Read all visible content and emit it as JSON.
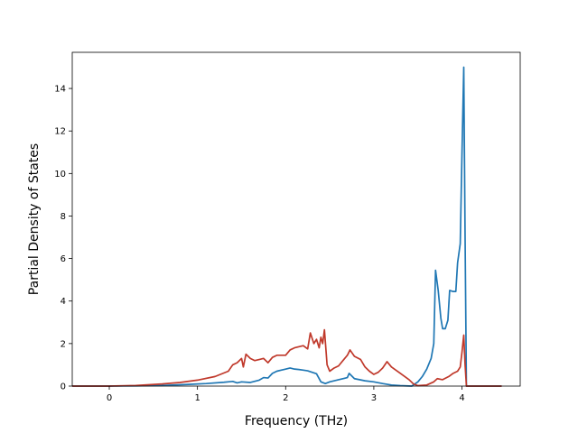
{
  "chart_data": {
    "type": "line",
    "title": "",
    "xlabel": "Frequency (THz)",
    "ylabel": "Partial Density of States",
    "xlim": [
      -0.42,
      4.66
    ],
    "ylim": [
      0,
      15.7
    ],
    "xticks": [
      0,
      1,
      2,
      3,
      4
    ],
    "yticks": [
      0,
      2,
      4,
      6,
      8,
      10,
      12,
      14
    ],
    "grid": false,
    "legend": "none",
    "series": [
      {
        "color": "#1f77b4",
        "points": [
          [
            -0.42,
            0
          ],
          [
            0.0,
            0
          ],
          [
            0.3,
            0.01
          ],
          [
            0.6,
            0.03
          ],
          [
            0.9,
            0.08
          ],
          [
            1.1,
            0.12
          ],
          [
            1.3,
            0.18
          ],
          [
            1.4,
            0.22
          ],
          [
            1.45,
            0.15
          ],
          [
            1.5,
            0.2
          ],
          [
            1.6,
            0.17
          ],
          [
            1.7,
            0.28
          ],
          [
            1.75,
            0.4
          ],
          [
            1.8,
            0.38
          ],
          [
            1.85,
            0.6
          ],
          [
            1.9,
            0.7
          ],
          [
            1.95,
            0.75
          ],
          [
            2.0,
            0.8
          ],
          [
            2.05,
            0.85
          ],
          [
            2.1,
            0.8
          ],
          [
            2.15,
            0.78
          ],
          [
            2.2,
            0.75
          ],
          [
            2.25,
            0.72
          ],
          [
            2.3,
            0.65
          ],
          [
            2.35,
            0.58
          ],
          [
            2.4,
            0.2
          ],
          [
            2.45,
            0.12
          ],
          [
            2.5,
            0.2
          ],
          [
            2.6,
            0.3
          ],
          [
            2.7,
            0.4
          ],
          [
            2.72,
            0.6
          ],
          [
            2.78,
            0.35
          ],
          [
            2.9,
            0.25
          ],
          [
            3.0,
            0.2
          ],
          [
            3.1,
            0.12
          ],
          [
            3.2,
            0.05
          ],
          [
            3.3,
            0.02
          ],
          [
            3.43,
            0.0
          ],
          [
            3.5,
            0.2
          ],
          [
            3.55,
            0.45
          ],
          [
            3.6,
            0.8
          ],
          [
            3.65,
            1.3
          ],
          [
            3.68,
            2.0
          ],
          [
            3.7,
            5.45
          ],
          [
            3.73,
            4.5
          ],
          [
            3.76,
            3.2
          ],
          [
            3.78,
            2.7
          ],
          [
            3.81,
            2.7
          ],
          [
            3.84,
            3.1
          ],
          [
            3.86,
            4.5
          ],
          [
            3.9,
            4.45
          ],
          [
            3.93,
            4.45
          ],
          [
            3.95,
            5.8
          ],
          [
            3.98,
            6.7
          ],
          [
            4.0,
            11.0
          ],
          [
            4.02,
            15.0
          ],
          [
            4.035,
            7.0
          ],
          [
            4.05,
            0.0
          ],
          [
            4.45,
            0.0
          ]
        ]
      },
      {
        "color": "#c0392b",
        "points": [
          [
            -0.42,
            0
          ],
          [
            0.0,
            0
          ],
          [
            0.3,
            0.03
          ],
          [
            0.6,
            0.1
          ],
          [
            0.8,
            0.17
          ],
          [
            1.0,
            0.28
          ],
          [
            1.2,
            0.45
          ],
          [
            1.35,
            0.7
          ],
          [
            1.4,
            1.0
          ],
          [
            1.45,
            1.1
          ],
          [
            1.5,
            1.3
          ],
          [
            1.52,
            0.9
          ],
          [
            1.55,
            1.5
          ],
          [
            1.6,
            1.3
          ],
          [
            1.65,
            1.2
          ],
          [
            1.7,
            1.25
          ],
          [
            1.75,
            1.3
          ],
          [
            1.8,
            1.1
          ],
          [
            1.85,
            1.35
          ],
          [
            1.9,
            1.45
          ],
          [
            2.0,
            1.45
          ],
          [
            2.05,
            1.7
          ],
          [
            2.1,
            1.8
          ],
          [
            2.2,
            1.9
          ],
          [
            2.25,
            1.75
          ],
          [
            2.28,
            2.5
          ],
          [
            2.32,
            2.0
          ],
          [
            2.35,
            2.2
          ],
          [
            2.38,
            1.8
          ],
          [
            2.4,
            2.3
          ],
          [
            2.42,
            2.0
          ],
          [
            2.44,
            2.65
          ],
          [
            2.47,
            1.0
          ],
          [
            2.5,
            0.7
          ],
          [
            2.55,
            0.85
          ],
          [
            2.6,
            0.95
          ],
          [
            2.65,
            1.2
          ],
          [
            2.7,
            1.45
          ],
          [
            2.73,
            1.7
          ],
          [
            2.78,
            1.4
          ],
          [
            2.85,
            1.25
          ],
          [
            2.9,
            0.9
          ],
          [
            2.95,
            0.7
          ],
          [
            3.0,
            0.55
          ],
          [
            3.05,
            0.65
          ],
          [
            3.1,
            0.85
          ],
          [
            3.15,
            1.15
          ],
          [
            3.2,
            0.9
          ],
          [
            3.3,
            0.6
          ],
          [
            3.4,
            0.3
          ],
          [
            3.45,
            0.1
          ],
          [
            3.5,
            0.02
          ],
          [
            3.6,
            0.05
          ],
          [
            3.68,
            0.2
          ],
          [
            3.72,
            0.35
          ],
          [
            3.78,
            0.3
          ],
          [
            3.85,
            0.45
          ],
          [
            3.9,
            0.6
          ],
          [
            3.95,
            0.7
          ],
          [
            3.98,
            0.9
          ],
          [
            4.0,
            1.6
          ],
          [
            4.02,
            2.4
          ],
          [
            4.035,
            1.0
          ],
          [
            4.05,
            0.0
          ],
          [
            4.45,
            0.0
          ]
        ]
      }
    ]
  }
}
